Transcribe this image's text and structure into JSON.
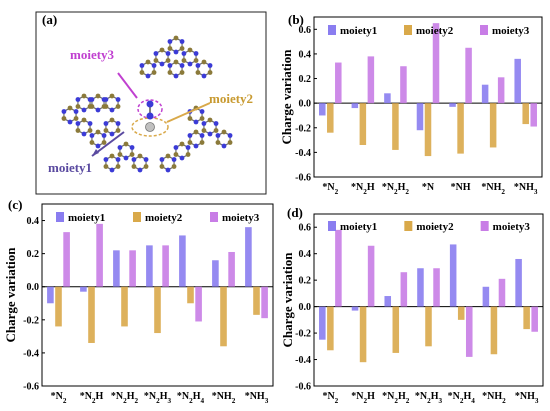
{
  "panel_labels": {
    "a": "(a)",
    "b": "(b)",
    "c": "(c)",
    "d": "(d)"
  },
  "structure_labels": {
    "moiety1": "moiety1",
    "moiety2": "moiety2",
    "moiety3": "moiety3"
  },
  "colors": {
    "moiety1": "#8a7df0",
    "moiety2": "#d9a94a",
    "moiety3": "#c87de6",
    "carbon": "#8b7a3a",
    "nitrogen": "#3b3bd6"
  },
  "chart_data": [
    {
      "type": "bar",
      "ylabel": "Charge variation",
      "ylim": [
        -0.6,
        0.7
      ],
      "yticks": [
        "-0.6",
        "-0.4",
        "-0.2",
        "0.0",
        "0.2",
        "0.4",
        "0.6"
      ],
      "categories": [
        "*N$2",
        "*N$2H",
        "*N$2H$2",
        "*N",
        "*NH",
        "*NH$2",
        "*NH$3"
      ],
      "series": [
        {
          "name": "moiety1",
          "values": [
            -0.1,
            -0.04,
            0.08,
            -0.22,
            -0.03,
            0.15,
            0.36
          ]
        },
        {
          "name": "moiety2",
          "values": [
            -0.24,
            -0.34,
            -0.38,
            -0.43,
            -0.41,
            -0.36,
            -0.17
          ]
        },
        {
          "name": "moiety3",
          "values": [
            0.33,
            0.38,
            0.3,
            0.65,
            0.45,
            0.21,
            -0.19
          ]
        }
      ]
    },
    {
      "type": "bar",
      "ylabel": "Charge variation",
      "ylim": [
        -0.6,
        0.5
      ],
      "yticks": [
        "-0.6",
        "-0.4",
        "-0.2",
        "0.0",
        "0.2",
        "0.4"
      ],
      "categories": [
        "*N$2",
        "*N$2H",
        "*N$2H$2",
        "*N$2H$3",
        "*N$2H$4",
        "*NH$2",
        "*NH$3"
      ],
      "series": [
        {
          "name": "moiety1",
          "values": [
            -0.1,
            -0.03,
            0.22,
            0.25,
            0.31,
            0.16,
            0.36
          ]
        },
        {
          "name": "moiety2",
          "values": [
            -0.24,
            -0.34,
            -0.24,
            -0.28,
            -0.1,
            -0.36,
            -0.17
          ]
        },
        {
          "name": "moiety3",
          "values": [
            0.33,
            0.38,
            0.22,
            0.25,
            -0.21,
            0.21,
            -0.19
          ]
        }
      ]
    },
    {
      "type": "bar",
      "ylabel": "Charge variation",
      "ylim": [
        -0.6,
        0.7
      ],
      "yticks": [
        "-0.6",
        "-0.4",
        "-0.2",
        "0.0",
        "0.2",
        "0.4",
        "0.6"
      ],
      "categories": [
        "*N$2",
        "*N$2H",
        "*N$2H$2",
        "*N$2H$3",
        "*N$2H$4",
        "*NH$2",
        "*NH$3"
      ],
      "series": [
        {
          "name": "moiety1",
          "values": [
            -0.25,
            -0.03,
            0.08,
            0.29,
            0.47,
            0.15,
            0.36
          ]
        },
        {
          "name": "moiety2",
          "values": [
            -0.33,
            -0.42,
            -0.35,
            -0.3,
            -0.1,
            -0.36,
            -0.17
          ]
        },
        {
          "name": "moiety3",
          "values": [
            0.58,
            0.46,
            0.26,
            0.29,
            -0.38,
            0.21,
            -0.19
          ]
        }
      ]
    }
  ]
}
